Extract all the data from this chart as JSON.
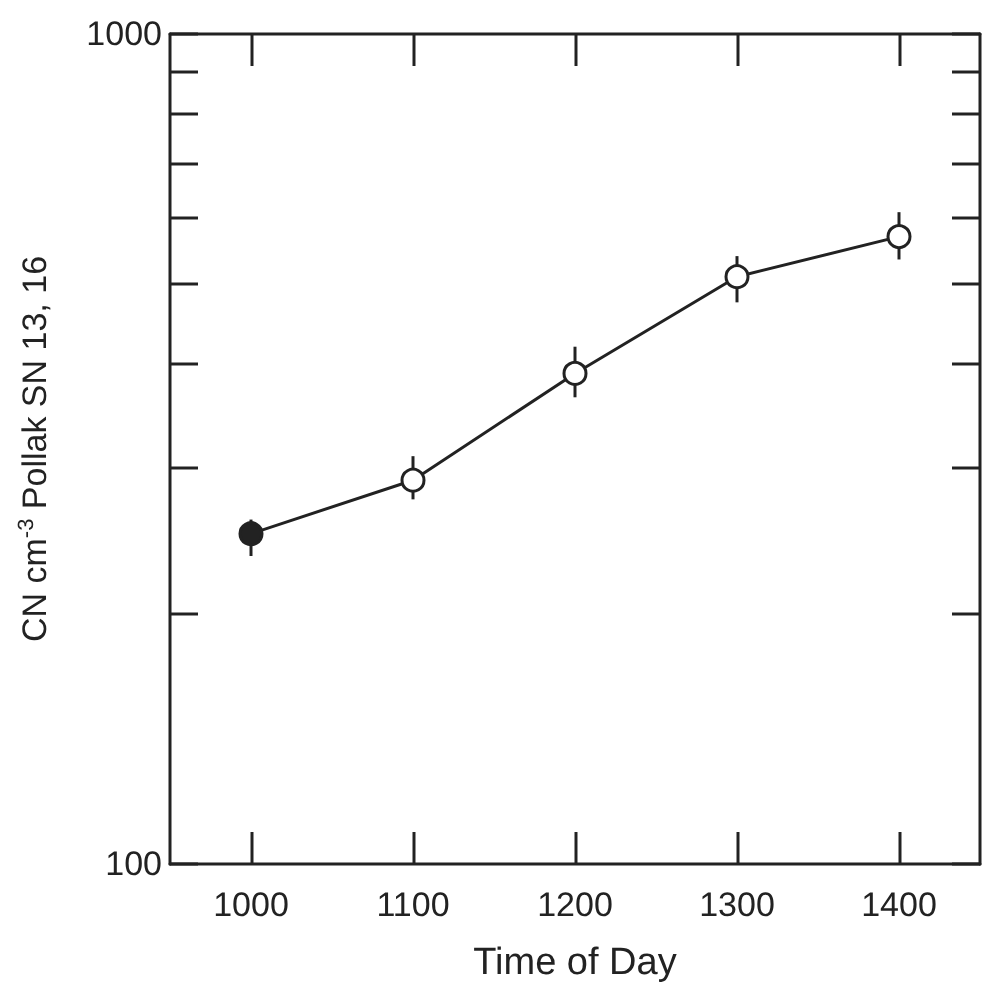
{
  "chart_data": {
    "type": "line",
    "xlabel": "Time of Day",
    "ylabel": "CN cm$^{-3}$ Pollak SN 13, 16",
    "x": [
      1000,
      1100,
      1200,
      1300,
      1400
    ],
    "values": [
      250,
      290,
      390,
      510,
      570
    ],
    "errors": [
      [
        235,
        260
      ],
      [
        275,
        310
      ],
      [
        365,
        420
      ],
      [
        475,
        540
      ],
      [
        535,
        610
      ]
    ],
    "color": "#222222",
    "colors": [
      "#222222",
      "#ffffff",
      "#ffffff",
      "#ffffff",
      "#ffffff"
    ],
    "marker": "circle",
    "line_style": "solid",
    "log": "y",
    "grid": false,
    "xlim": [
      950,
      1450
    ],
    "xticks": [
      1000,
      1100,
      1200,
      1300,
      1400
    ],
    "ylim": [
      100,
      1000
    ],
    "yticks": [
      100,
      {
        "value": 200,
        "label": null
      },
      {
        "value": 300,
        "label": null
      },
      {
        "value": 400,
        "label": null
      },
      {
        "value": 500,
        "label": null
      },
      {
        "value": 600,
        "label": null
      },
      {
        "value": 700,
        "label": null
      },
      {
        "value": 800,
        "label": null
      },
      {
        "value": 900,
        "label": null
      },
      1000
    ]
  }
}
